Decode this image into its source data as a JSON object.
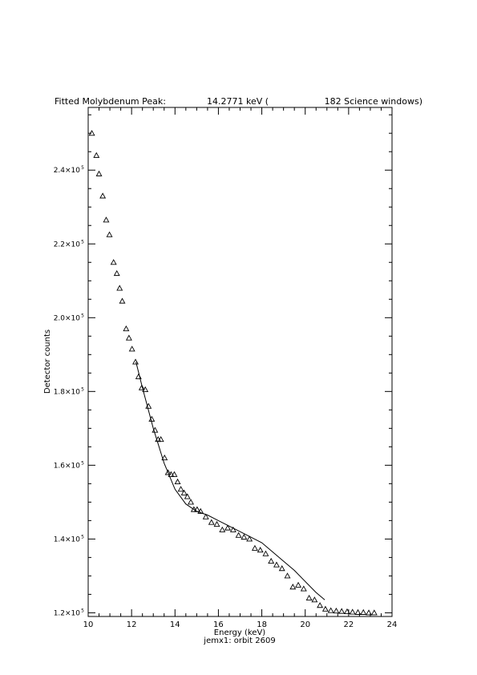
{
  "title": {
    "prefix": "Fitted Molybdenum Peak:",
    "energy": "14.2771 keV (",
    "windows": "182 Science windows)"
  },
  "footer": "jemx1: orbit 2609",
  "chart_data": {
    "type": "scatter",
    "xlabel": "Energy (keV)",
    "ylabel": "Detector counts",
    "xlim": [
      10,
      24
    ],
    "ylim": [
      119000,
      257000
    ],
    "x_ticks": [
      10,
      12,
      14,
      16,
      18,
      20,
      22,
      24
    ],
    "x_tick_labels": [
      "10",
      "12",
      "14",
      "16",
      "18",
      "20",
      "22",
      "24"
    ],
    "y_ticks": [
      120000,
      140000,
      160000,
      180000,
      200000,
      220000,
      240000
    ],
    "y_tick_labels": [
      {
        "mantissa": "1.2×10",
        "exp": "5"
      },
      {
        "mantissa": "1.4×10",
        "exp": "5"
      },
      {
        "mantissa": "1.6×10",
        "exp": "5"
      },
      {
        "mantissa": "1.8×10",
        "exp": "5"
      },
      {
        "mantissa": "2.0×10",
        "exp": "5"
      },
      {
        "mantissa": "2.2×10",
        "exp": "5"
      },
      {
        "mantissa": "2.4×10",
        "exp": "5"
      }
    ],
    "series": [
      {
        "marker": "triangle",
        "x": [
          10.17,
          10.38,
          10.5,
          10.67,
          10.83,
          10.98,
          11.17,
          11.32,
          11.45,
          11.57,
          11.75,
          11.88,
          12.02,
          12.18,
          12.32,
          12.47,
          12.63,
          12.78,
          12.93,
          13.08,
          13.22,
          13.35,
          13.52,
          13.68,
          13.82,
          13.97,
          14.12,
          14.27,
          14.42,
          14.57,
          14.73,
          14.87,
          15.02,
          15.18,
          15.42,
          15.68,
          15.93,
          16.18,
          16.43,
          16.68,
          16.93,
          17.18,
          17.43,
          17.68,
          17.93,
          18.18,
          18.43,
          18.68,
          18.93,
          19.18,
          19.43,
          19.68,
          19.93,
          20.18,
          20.43,
          20.68,
          20.93,
          21.18,
          21.43,
          21.68,
          21.93,
          22.18,
          22.43,
          22.68,
          22.93,
          23.18
        ],
        "y": [
          250000,
          244000,
          239000,
          233000,
          226500,
          222500,
          215000,
          212000,
          208000,
          204500,
          197000,
          194500,
          191500,
          188000,
          184000,
          181000,
          180500,
          176000,
          172500,
          169500,
          167000,
          167000,
          162000,
          158000,
          157500,
          157500,
          155500,
          153500,
          152500,
          151500,
          150000,
          148000,
          148000,
          147500,
          146000,
          144500,
          144000,
          142500,
          143000,
          142500,
          141000,
          140500,
          140000,
          137500,
          137000,
          136000,
          134000,
          133000,
          132000,
          130000,
          127000,
          127500,
          126500,
          124000,
          123500,
          122000,
          121000,
          120600,
          120500,
          120400,
          120300,
          120200,
          120100,
          120100,
          120000,
          120000
        ]
      },
      {
        "marker": "line",
        "x": [
          12.2,
          12.5,
          13.0,
          13.5,
          14.0,
          14.5,
          15.0,
          15.5,
          16.0,
          16.5,
          17.0,
          17.5,
          18.0,
          18.5,
          19.0,
          19.5,
          20.0,
          20.5,
          20.9
        ],
        "y": [
          188000,
          181000,
          170000,
          160500,
          153500,
          149500,
          147500,
          146500,
          145000,
          143500,
          142000,
          140500,
          139000,
          136500,
          134000,
          131500,
          128500,
          125500,
          123500
        ]
      }
    ]
  }
}
